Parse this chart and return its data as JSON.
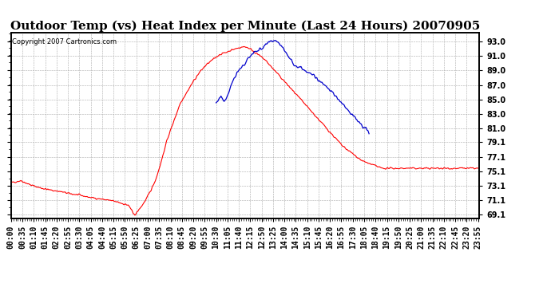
{
  "title": "Outdoor Temp (vs) Heat Index per Minute (Last 24 Hours) 20070905",
  "copyright": "Copyright 2007 Cartronics.com",
  "bg_color": "#ffffff",
  "plot_bg_color": "#ffffff",
  "grid_color": "#aaaaaa",
  "line_red_color": "#ff0000",
  "line_blue_color": "#0000cc",
  "yticks": [
    69.1,
    71.1,
    73.1,
    75.1,
    77.1,
    79.1,
    81.0,
    83.0,
    85.0,
    87.0,
    89.0,
    91.0,
    93.0
  ],
  "ylim": [
    68.6,
    94.2
  ],
  "total_minutes": 1440,
  "title_fontsize": 11,
  "tick_fontsize": 7,
  "red_keypoints": [
    [
      0,
      73.5
    ],
    [
      30,
      73.8
    ],
    [
      60,
      73.2
    ],
    [
      90,
      72.8
    ],
    [
      120,
      72.5
    ],
    [
      150,
      72.3
    ],
    [
      180,
      72.0
    ],
    [
      210,
      71.8
    ],
    [
      240,
      71.5
    ],
    [
      270,
      71.3
    ],
    [
      300,
      71.1
    ],
    [
      330,
      70.8
    ],
    [
      360,
      70.4
    ],
    [
      370,
      69.8
    ],
    [
      375,
      69.2
    ],
    [
      380,
      69.1
    ],
    [
      385,
      69.3
    ],
    [
      390,
      69.6
    ],
    [
      400,
      70.2
    ],
    [
      415,
      71.2
    ],
    [
      430,
      72.5
    ],
    [
      445,
      74.0
    ],
    [
      460,
      76.2
    ],
    [
      480,
      79.5
    ],
    [
      500,
      82.0
    ],
    [
      520,
      84.5
    ],
    [
      540,
      86.0
    ],
    [
      560,
      87.5
    ],
    [
      580,
      88.8
    ],
    [
      600,
      89.8
    ],
    [
      620,
      90.5
    ],
    [
      640,
      91.2
    ],
    [
      660,
      91.5
    ],
    [
      675,
      91.8
    ],
    [
      690,
      92.0
    ],
    [
      705,
      92.2
    ],
    [
      720,
      92.3
    ],
    [
      735,
      92.0
    ],
    [
      750,
      91.5
    ],
    [
      765,
      91.0
    ],
    [
      780,
      90.5
    ],
    [
      800,
      89.5
    ],
    [
      820,
      88.5
    ],
    [
      840,
      87.5
    ],
    [
      870,
      86.0
    ],
    [
      900,
      84.5
    ],
    [
      930,
      83.0
    ],
    [
      960,
      81.5
    ],
    [
      990,
      80.0
    ],
    [
      1020,
      78.5
    ],
    [
      1050,
      77.5
    ],
    [
      1080,
      76.5
    ],
    [
      1110,
      76.0
    ],
    [
      1140,
      75.5
    ],
    [
      1200,
      75.5
    ],
    [
      1260,
      75.5
    ],
    [
      1320,
      75.5
    ],
    [
      1380,
      75.5
    ],
    [
      1439,
      75.5
    ]
  ],
  "blue_keypoints": [
    [
      630,
      84.5
    ],
    [
      645,
      85.5
    ],
    [
      655,
      84.8
    ],
    [
      665,
      85.5
    ],
    [
      680,
      87.5
    ],
    [
      690,
      88.2
    ],
    [
      700,
      89.0
    ],
    [
      710,
      89.5
    ],
    [
      720,
      90.0
    ],
    [
      730,
      90.8
    ],
    [
      745,
      91.5
    ],
    [
      760,
      91.8
    ],
    [
      775,
      92.2
    ],
    [
      790,
      92.8
    ],
    [
      800,
      93.0
    ],
    [
      810,
      93.2
    ],
    [
      820,
      93.0
    ],
    [
      830,
      92.5
    ],
    [
      840,
      91.8
    ],
    [
      855,
      90.8
    ],
    [
      870,
      89.8
    ],
    [
      885,
      89.5
    ],
    [
      895,
      89.3
    ],
    [
      905,
      89.0
    ],
    [
      915,
      88.7
    ],
    [
      930,
      88.3
    ],
    [
      950,
      87.5
    ],
    [
      970,
      86.8
    ],
    [
      990,
      85.8
    ],
    [
      1010,
      84.8
    ],
    [
      1030,
      83.8
    ],
    [
      1050,
      82.8
    ],
    [
      1070,
      81.8
    ],
    [
      1090,
      81.0
    ],
    [
      1100,
      80.5
    ]
  ]
}
